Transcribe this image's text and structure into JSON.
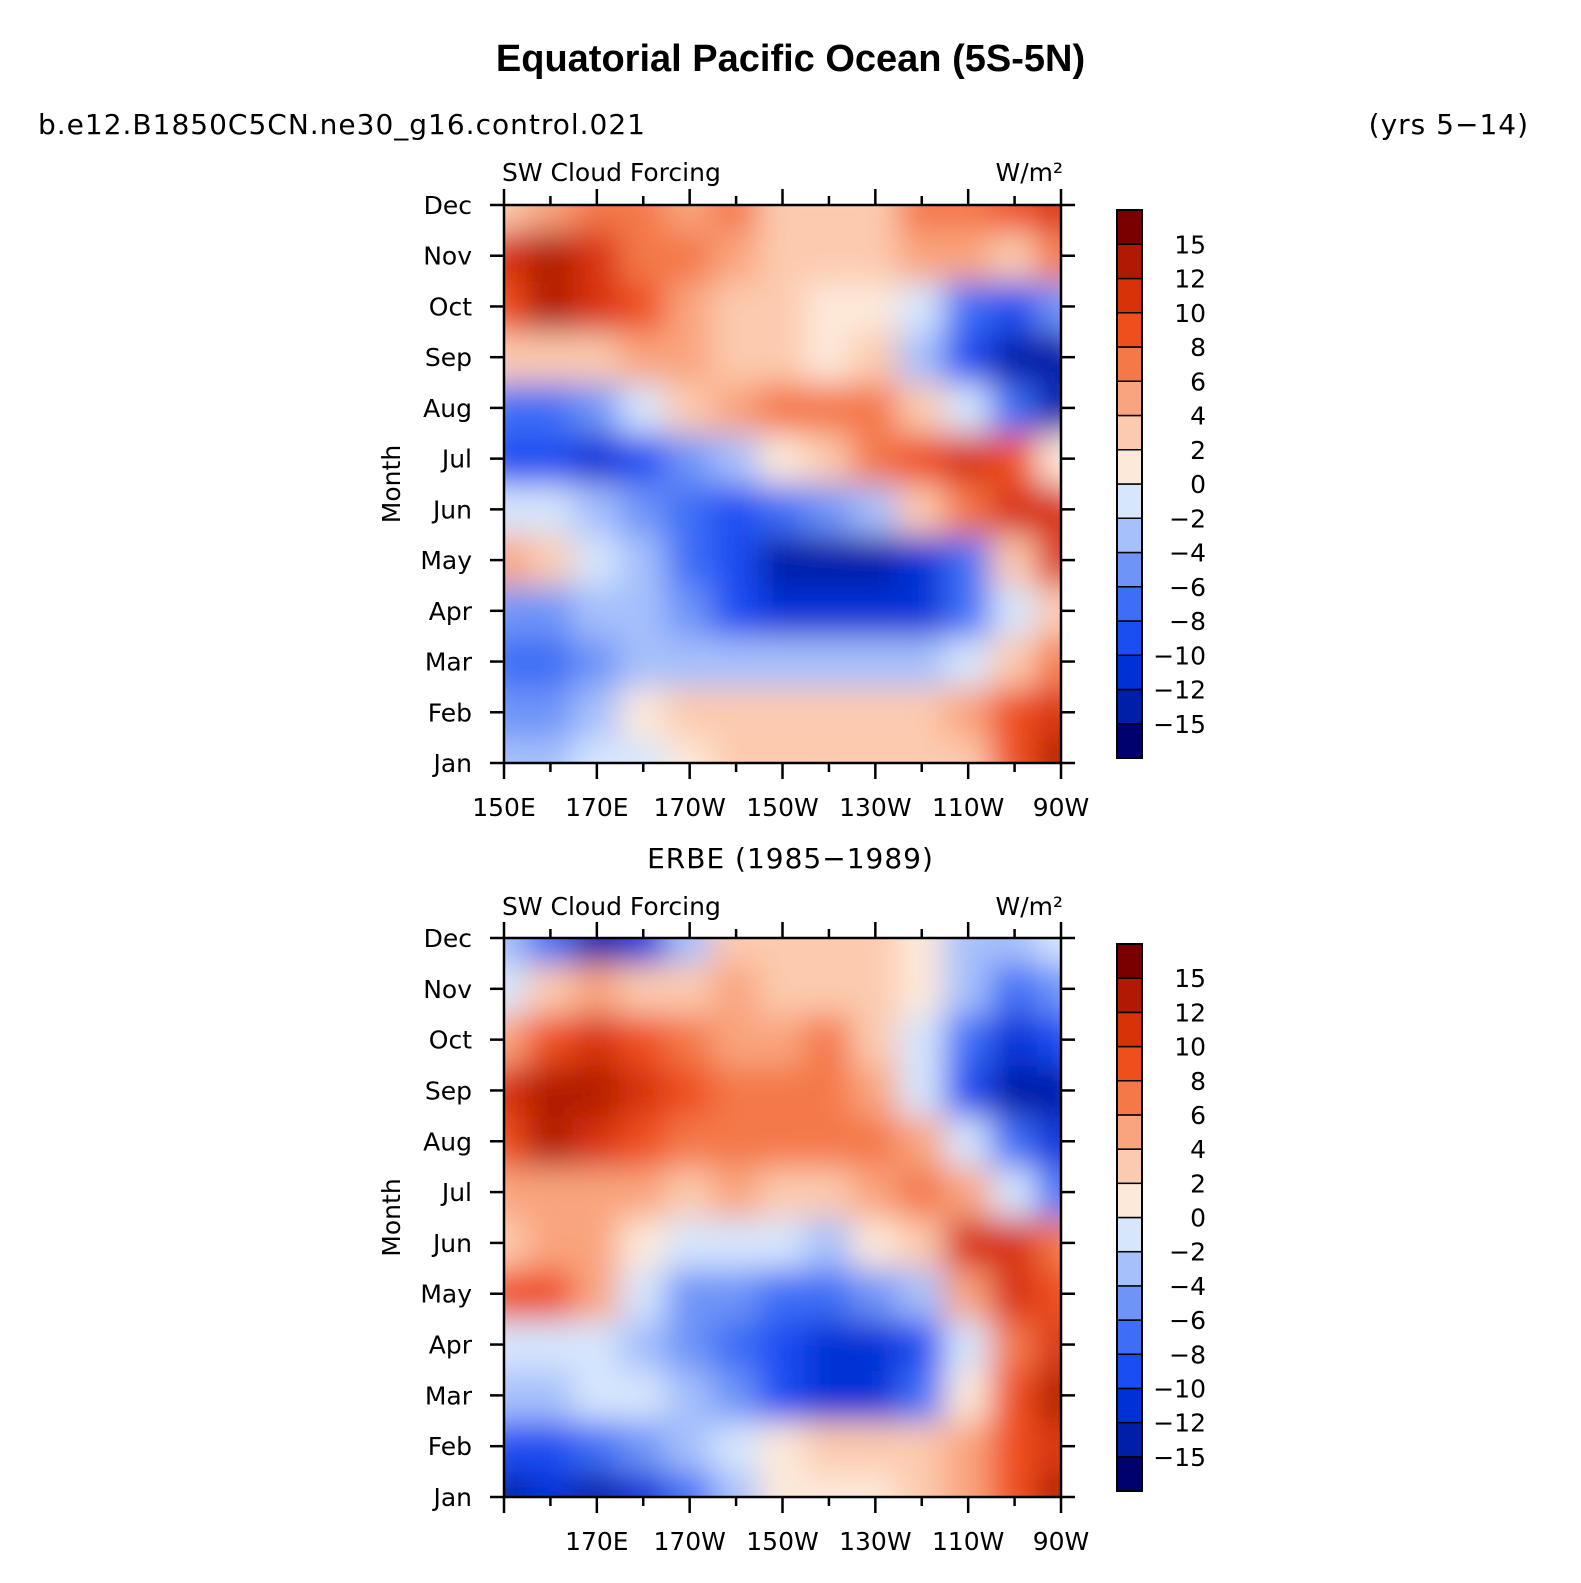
{
  "title": "Equatorial Pacific Ocean (5S-5N)",
  "case_name": "b.e12.B1850C5CN.ne30_g16.control.021",
  "years": "(yrs 5−14)",
  "obs_title": "ERBE (1985−1989)",
  "panels": [
    {
      "title": "SW Cloud Forcing",
      "units": "W/m²",
      "ylabel": "Month",
      "x_ticks": [
        "150E",
        "170E",
        "170W",
        "150W",
        "130W",
        "110W",
        "90W"
      ]
    },
    {
      "title": "SW Cloud Forcing",
      "units": "W/m²",
      "ylabel": "Month",
      "x_ticks": [
        "",
        "170E",
        "170W",
        "150W",
        "130W",
        "110W",
        "90W"
      ]
    }
  ],
  "months": [
    "Jan",
    "Feb",
    "Mar",
    "Apr",
    "May",
    "Jun",
    "Jul",
    "Aug",
    "Sep",
    "Oct",
    "Nov",
    "Dec"
  ],
  "colorbar": {
    "labels": [
      "15",
      "12",
      "10",
      "8",
      "6",
      "4",
      "2",
      "0",
      "−2",
      "−4",
      "−6",
      "−8",
      "−10",
      "−12",
      "−15"
    ],
    "levels": [
      -15,
      -12,
      -10,
      -8,
      -6,
      -4,
      -2,
      0,
      2,
      4,
      6,
      8,
      10,
      12,
      15
    ],
    "colors": [
      "#00006e",
      "#001fa8",
      "#0031d6",
      "#1b4ef2",
      "#3e6ef6",
      "#6e94f8",
      "#a6c0fb",
      "#d6e6fd",
      "#fde9d9",
      "#fccaae",
      "#f9a47e",
      "#f47848",
      "#ef4f1c",
      "#d83208",
      "#b01a04",
      "#7a0000"
    ]
  },
  "chart_data": [
    {
      "type": "heatmap",
      "title": "SW Cloud Forcing",
      "subtitle": "b.e12.B1850C5CN.ne30_g16.control.021 (yrs 5−14)",
      "units": "W/m²",
      "xlabel": "",
      "ylabel": "Month",
      "x": [
        "150E",
        "160E",
        "170E",
        "180",
        "170W",
        "160W",
        "150W",
        "140W",
        "130W",
        "120W",
        "110W",
        "100W",
        "90W"
      ],
      "y": [
        "Jan",
        "Feb",
        "Mar",
        "Apr",
        "May",
        "Jun",
        "Jul",
        "Aug",
        "Sep",
        "Oct",
        "Nov",
        "Dec"
      ],
      "values": [
        [
          -4,
          -4,
          -2,
          -2,
          0,
          2,
          3,
          3,
          3,
          3,
          3,
          8,
          12
        ],
        [
          -5,
          -5,
          -3,
          1,
          2,
          2,
          2,
          3,
          3,
          3,
          4,
          8,
          11
        ],
        [
          -8,
          -7,
          -5,
          -4,
          -4,
          -4,
          -4,
          -4,
          -4,
          -3,
          -1,
          2,
          6
        ],
        [
          -6,
          -5,
          -3,
          -4,
          -6,
          -10,
          -12,
          -12,
          -12,
          -12,
          -8,
          -2,
          3
        ],
        [
          5,
          3,
          -2,
          -4,
          -8,
          -10,
          -13,
          -13,
          -13,
          -12,
          -8,
          2,
          10
        ],
        [
          -2,
          -2,
          -4,
          -6,
          -8,
          -10,
          -8,
          -6,
          -4,
          2,
          7,
          10,
          10
        ],
        [
          -10,
          -10,
          -12,
          -10,
          -6,
          -3,
          0,
          3,
          6,
          8,
          11,
          9,
          0
        ],
        [
          -8,
          -8,
          -5,
          -2,
          2,
          4,
          6,
          6,
          6,
          3,
          -2,
          -8,
          -15
        ],
        [
          2,
          3,
          3,
          4,
          4,
          3,
          2,
          1,
          2,
          -4,
          -10,
          -14,
          -15
        ],
        [
          8,
          12,
          10,
          8,
          5,
          3,
          2,
          1,
          1,
          -2,
          -8,
          -10,
          -6
        ],
        [
          11,
          12,
          10,
          7,
          6,
          4,
          2,
          2,
          3,
          5,
          5,
          2,
          6
        ],
        [
          3,
          4,
          6,
          6,
          5,
          6,
          3,
          3,
          3,
          6,
          7,
          8,
          10
        ]
      ],
      "levels": [
        -15,
        -12,
        -10,
        -8,
        -6,
        -4,
        -2,
        0,
        2,
        4,
        6,
        8,
        10,
        12,
        15
      ]
    },
    {
      "type": "heatmap",
      "title": "SW Cloud Forcing",
      "subtitle": "ERBE (1985−1989)",
      "units": "W/m²",
      "xlabel": "",
      "ylabel": "Month",
      "x": [
        "150E",
        "160E",
        "170E",
        "180",
        "170W",
        "160W",
        "150W",
        "140W",
        "130W",
        "120W",
        "110W",
        "100W",
        "90W"
      ],
      "y": [
        "Jan",
        "Feb",
        "Mar",
        "Apr",
        "May",
        "Jun",
        "Jul",
        "Aug",
        "Sep",
        "Oct",
        "Nov",
        "Dec"
      ],
      "values": [
        [
          -13,
          -12,
          -13,
          -12,
          -8,
          -4,
          0,
          1,
          0,
          2,
          4,
          8,
          12
        ],
        [
          -10,
          -9,
          -8,
          -6,
          -4,
          -2,
          1,
          2,
          2,
          3,
          5,
          9,
          11
        ],
        [
          -4,
          -4,
          -2,
          -2,
          -4,
          -6,
          -9,
          -12,
          -12,
          -8,
          0,
          9,
          12
        ],
        [
          -2,
          -2,
          -1,
          -3,
          -6,
          -8,
          -10,
          -12,
          -12,
          -9,
          -2,
          6,
          10
        ],
        [
          9,
          8,
          4,
          -2,
          -5,
          -5,
          -8,
          -8,
          -6,
          -3,
          4,
          10,
          9
        ],
        [
          3,
          5,
          4,
          1,
          -2,
          -1,
          -1,
          -3,
          0,
          3,
          10,
          10,
          6
        ],
        [
          4,
          4,
          4,
          5,
          3,
          4,
          3,
          2,
          4,
          6,
          4,
          -2,
          -8
        ],
        [
          8,
          12,
          11,
          8,
          7,
          7,
          7,
          6,
          6,
          4,
          -2,
          -8,
          -12
        ],
        [
          10,
          13,
          12,
          10,
          8,
          7,
          6,
          6,
          5,
          -1,
          -10,
          -14,
          -15
        ],
        [
          5,
          8,
          10,
          9,
          6,
          4,
          4,
          6,
          2,
          -1,
          -8,
          -12,
          -10
        ],
        [
          -2,
          2,
          4,
          3,
          3,
          4,
          3,
          3,
          2,
          0,
          -4,
          -8,
          -6
        ],
        [
          -4,
          -8,
          -13,
          -12,
          -3,
          2,
          2,
          2,
          2,
          1,
          -3,
          -4,
          -2
        ]
      ],
      "levels": [
        -15,
        -12,
        -10,
        -8,
        -6,
        -4,
        -2,
        0,
        2,
        4,
        6,
        8,
        10,
        12,
        15
      ]
    }
  ]
}
